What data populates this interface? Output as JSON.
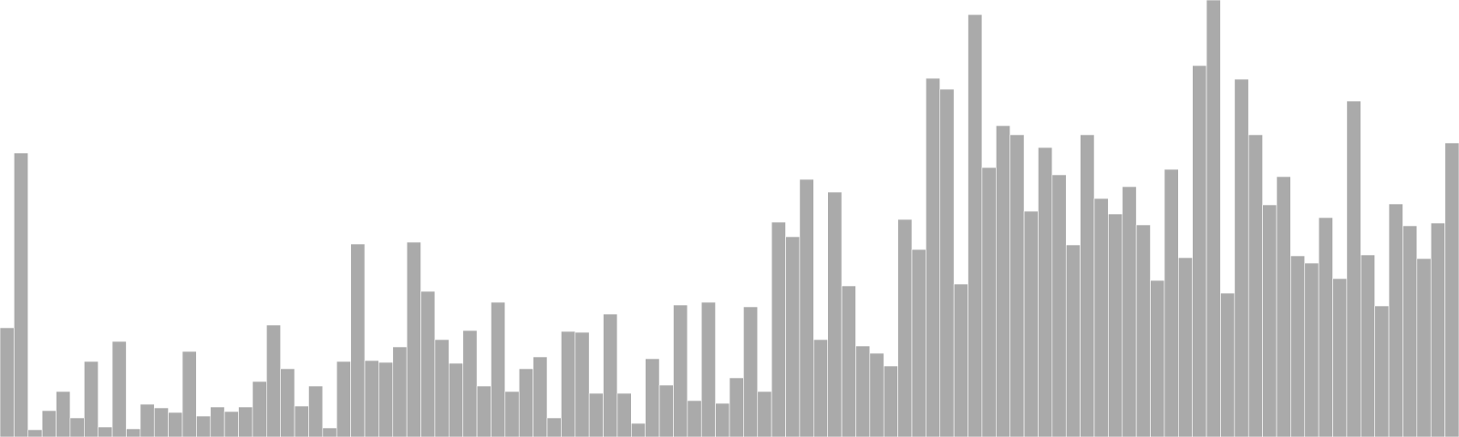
{
  "chart_data": {
    "type": "bar",
    "title": "",
    "xlabel": "",
    "ylabel": "",
    "ylim": [
      0,
      480
    ],
    "grid": false,
    "legend": "none",
    "colors": {
      "bar_fill": "#aaaaaa",
      "bar_stroke": "#ffffff",
      "background": "#ffffff"
    },
    "values": [
      120,
      312,
      8,
      29,
      50,
      21,
      83,
      11,
      105,
      9,
      36,
      32,
      27,
      94,
      23,
      33,
      28,
      33,
      61,
      123,
      75,
      34,
      56,
      10,
      83,
      212,
      84,
      82,
      99,
      214,
      160,
      107,
      81,
      117,
      56,
      148,
      50,
      75,
      88,
      21,
      116,
      115,
      48,
      135,
      48,
      15,
      86,
      57,
      145,
      40,
      148,
      37,
      65,
      143,
      50,
      236,
      220,
      283,
      107,
      269,
      166,
      100,
      92,
      78,
      239,
      206,
      394,
      382,
      168,
      464,
      296,
      342,
      332,
      248,
      318,
      288,
      211,
      332,
      262,
      245,
      275,
      233,
      172,
      294,
      197,
      408,
      480,
      158,
      393,
      332,
      255,
      286,
      199,
      191,
      241,
      174,
      369,
      200,
      144,
      256,
      232,
      196,
      235,
      323
    ]
  }
}
